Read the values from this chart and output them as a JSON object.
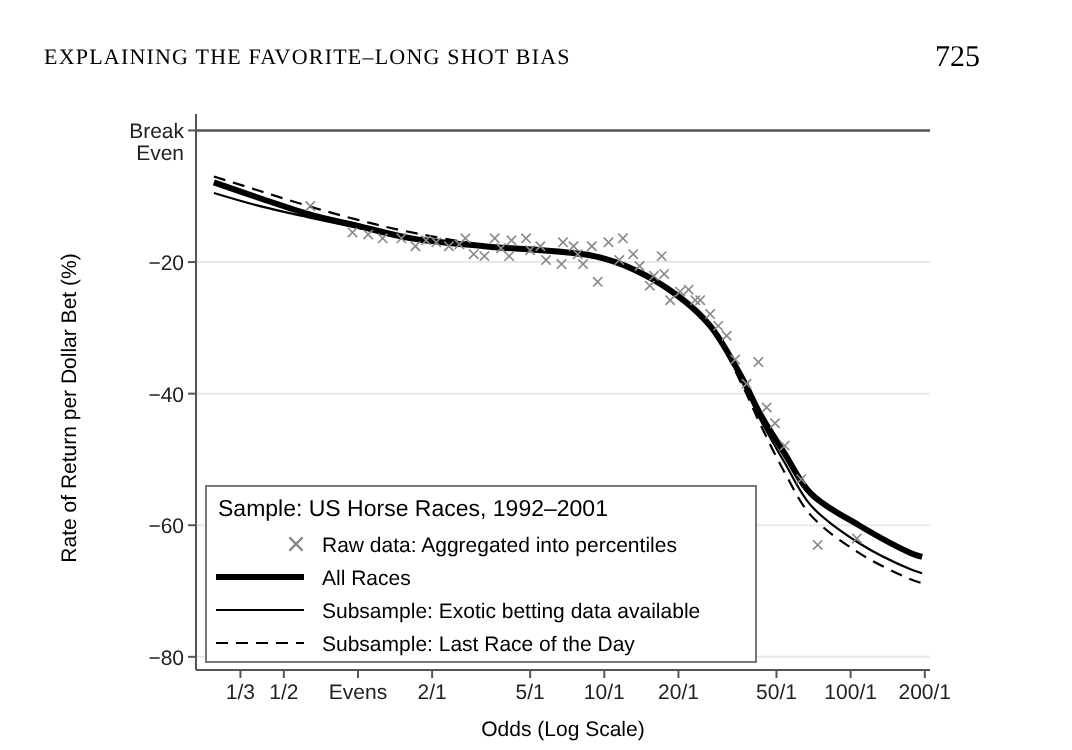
{
  "chart_data": {
    "type": "scatter",
    "annotations": [
      "EXPLAINING THE FAVORITE–LONG SHOT BIAS",
      "725"
    ],
    "xlabel": "Odds (Log Scale)",
    "ylabel": "Rate of Return per Dollar Bet (%)",
    "legend_title": "Sample: US Horse Races, 1992–2001",
    "legend": "bottom left",
    "grid": "y",
    "log": "x",
    "xlim": [
      0.22,
      210
    ],
    "xticks": [
      {
        "value": 0.3333,
        "label": "1/3"
      },
      {
        "value": 0.5,
        "label": "1/2"
      },
      {
        "value": 1,
        "label": "Evens"
      },
      {
        "value": 2,
        "label": "2/1"
      },
      {
        "value": 5,
        "label": "5/1"
      },
      {
        "value": 10,
        "label": "10/1"
      },
      {
        "value": 20,
        "label": "20/1"
      },
      {
        "value": 50,
        "label": "50/1"
      },
      {
        "value": 100,
        "label": "100/1"
      },
      {
        "value": 200,
        "label": "200/1"
      }
    ],
    "ylim": [
      -82,
      2.5
    ],
    "yticks": [
      {
        "value": 0,
        "label": "Break Even"
      },
      -20,
      -40,
      -60,
      -80
    ],
    "ref_lines": [
      {
        "axis": "y",
        "value": 0,
        "color": "#555555"
      }
    ],
    "series": [
      {
        "name": "Raw data: Aggregated into percentiles",
        "marker": "cross",
        "color": "#888888",
        "x": [
          0.64,
          0.95,
          1.1,
          1.26,
          1.5,
          1.71,
          1.89,
          2.08,
          2.34,
          2.58,
          2.73,
          2.95,
          3.26,
          3.59,
          3.81,
          4.11,
          4.2,
          4.81,
          5.0,
          5.5,
          5.8,
          6.7,
          6.8,
          7.5,
          7.8,
          8.2,
          8.9,
          9.4,
          10.4,
          11.5,
          11.9,
          13.1,
          13.9,
          15.3,
          15.9,
          17.1,
          17.5,
          18.5,
          20.3,
          22,
          23.4,
          24.5,
          26.9,
          29,
          31.4,
          34,
          37.8,
          42.2,
          45.6,
          49.3,
          54,
          63,
          73.5,
          106
        ],
        "values": [
          -11.5,
          -15.5,
          -15.8,
          -16.4,
          -16.4,
          -17.6,
          -16.7,
          -17,
          -17.6,
          -17.3,
          -16.4,
          -18.8,
          -19.1,
          -16.4,
          -17.9,
          -19.1,
          -16.7,
          -16.4,
          -18.2,
          -17.6,
          -19.7,
          -20.3,
          -17,
          -17.6,
          -18.8,
          -20.3,
          -17.6,
          -23,
          -17,
          -19.7,
          -16.4,
          -18.8,
          -20.6,
          -23.6,
          -22.1,
          -19.1,
          -21.8,
          -25.8,
          -24.5,
          -24.2,
          -25.8,
          -25.8,
          -27.9,
          -29.7,
          -31.2,
          -34.8,
          -38.5,
          -35.2,
          -42.1,
          -44.5,
          -47.9,
          -53,
          -63,
          -62
        ]
      },
      {
        "name": "All Races",
        "type": "line",
        "line_style": "solid",
        "color": "#000000",
        "x": [
          0.26,
          0.4,
          0.63,
          1,
          1.65,
          3.26,
          9.1,
          13.3,
          20,
          26.9,
          36.6,
          42.8,
          54,
          69,
          108,
          175,
          195
        ],
        "values": [
          -7.9,
          -10.3,
          -12.7,
          -14.5,
          -16.4,
          -17.6,
          -19.1,
          -21.2,
          -25.2,
          -29.7,
          -37.9,
          -43,
          -49.1,
          -55.2,
          -60,
          -64.2,
          -64.8
        ]
      },
      {
        "name": "Subsample: Exotic betting data available",
        "type": "line",
        "line_style": "solid",
        "color": "#000000",
        "x": [
          0.26,
          0.4,
          0.63,
          1,
          1.65,
          3.26,
          9.1,
          13.3,
          20,
          26.9,
          36.6,
          42.8,
          54,
          69,
          108,
          175,
          195
        ],
        "values": [
          -9.5,
          -11.5,
          -13.2,
          -14.8,
          -16.4,
          -17.6,
          -19.1,
          -21.2,
          -25.2,
          -29.7,
          -38.5,
          -43.8,
          -50.5,
          -57,
          -62.7,
          -66.7,
          -67.3
        ]
      },
      {
        "name": "Subsample: Last Race of the Day",
        "type": "line",
        "line_style": "dashed",
        "color": "#000000",
        "x": [
          0.26,
          0.4,
          0.63,
          1,
          1.65,
          3.26,
          9.1,
          13.3,
          20,
          26.9,
          36.6,
          42.8,
          54,
          69,
          108,
          175,
          195
        ],
        "values": [
          -7,
          -9.2,
          -11.5,
          -13.6,
          -15.5,
          -17.4,
          -19.1,
          -21.2,
          -25.2,
          -29.7,
          -39,
          -44.5,
          -52,
          -58.5,
          -64.2,
          -68.2,
          -68.8
        ]
      }
    ]
  }
}
